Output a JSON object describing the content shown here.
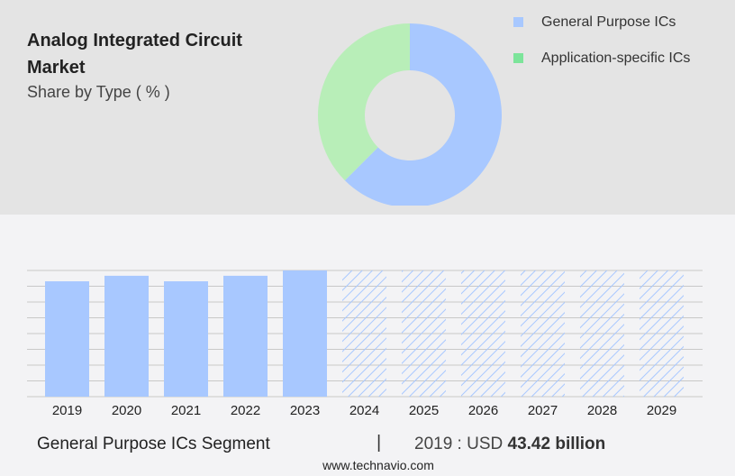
{
  "title": "Analog Integrated Circuit Market",
  "subtitle": "Share by Type ( % )",
  "colors": {
    "general": "#a8c8ff",
    "application": "#b8eeb8",
    "application_legend": "#7ce49a",
    "gridline": "#c8c8c8"
  },
  "chart_data": [
    {
      "type": "pie",
      "variant": "donut",
      "slices": [
        {
          "name": "General Purpose ICs",
          "value": 62.5
        },
        {
          "name": "Application-specific ICs",
          "value": 37.5
        }
      ]
    },
    {
      "type": "bar",
      "categories": [
        "2019",
        "2020",
        "2021",
        "2022",
        "2023",
        "2024",
        "2025",
        "2026",
        "2027",
        "2028",
        "2029"
      ],
      "values": [
        43.42,
        45.5,
        43.42,
        45.5,
        47.5,
        null,
        null,
        null,
        null,
        null,
        null
      ],
      "forecast_from": "2024",
      "ylim": [
        0,
        47.5
      ],
      "grid": true,
      "xlabel": "",
      "ylabel": ""
    }
  ],
  "footer": {
    "segment": "General Purpose ICs Segment",
    "separator": "|",
    "year_label": "2019 : USD",
    "value": "43.42 billion",
    "site": "www.technavio.com"
  }
}
